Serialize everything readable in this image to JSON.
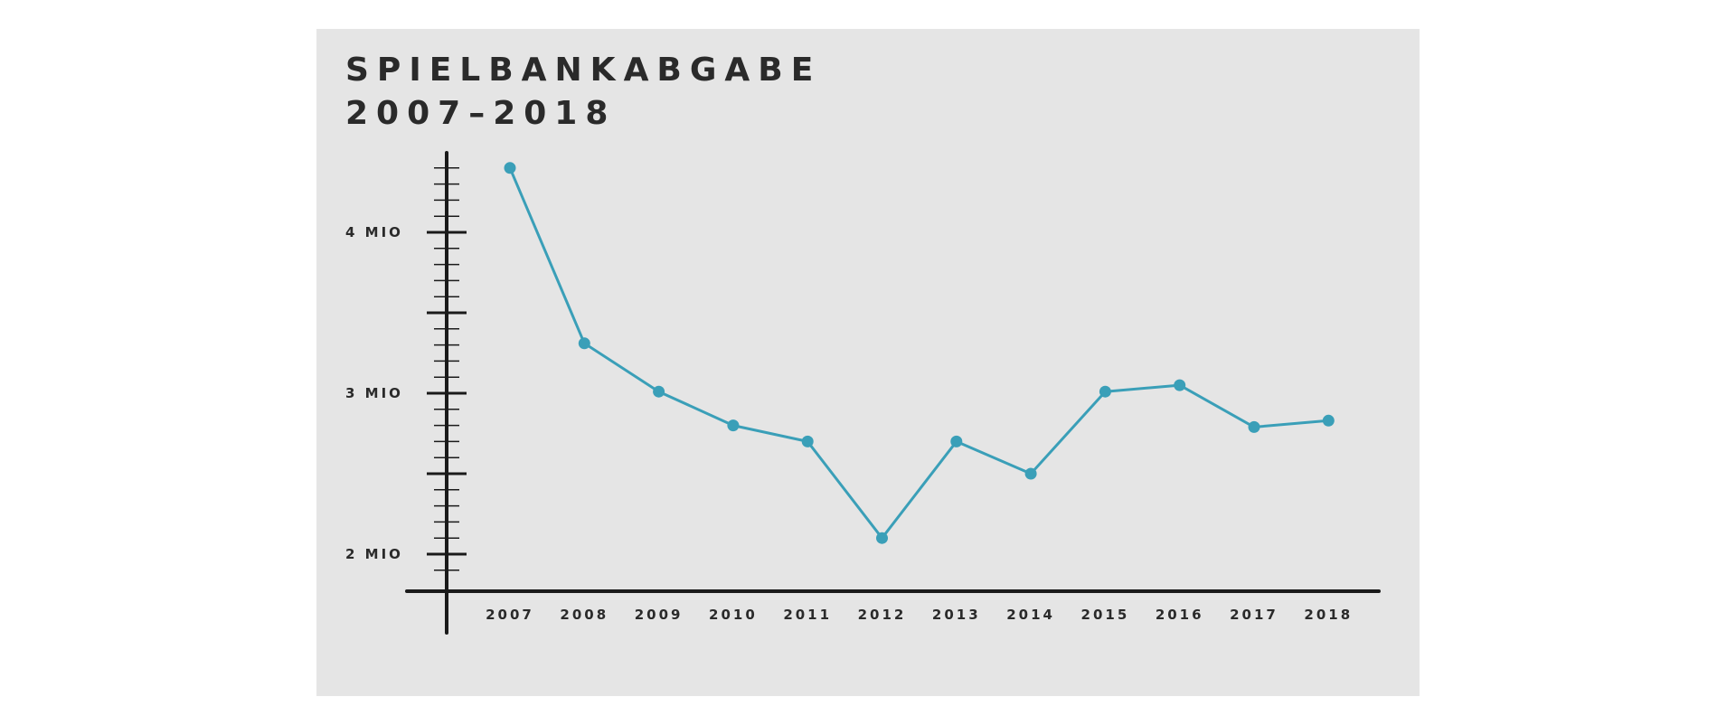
{
  "colors": {
    "panel_background": "#e5e5e5",
    "axis": "#1a1a1a",
    "series": "#3a9fb8",
    "text": "#2a2a2a"
  },
  "chart_data": {
    "type": "line",
    "title_lines": [
      "SPIELBANKABGABE",
      "2007–2018"
    ],
    "xlabel": "",
    "ylabel": "",
    "categories": [
      "2007",
      "2008",
      "2009",
      "2010",
      "2011",
      "2012",
      "2013",
      "2014",
      "2015",
      "2016",
      "2017",
      "2018"
    ],
    "values": [
      4400000,
      3310000,
      3010000,
      2800000,
      2700000,
      2100000,
      2700000,
      2500000,
      3010000,
      3050000,
      2790000,
      2830000
    ],
    "y_ticks": [
      {
        "value": 2000000,
        "label": "2 MIO"
      },
      {
        "value": 3000000,
        "label": "3 MIO"
      },
      {
        "value": 4000000,
        "label": "4 MIO"
      }
    ],
    "y_half_ticks": [
      2500000,
      3500000
    ],
    "y_minor_step": 100000,
    "ylim": [
      1770000,
      4500000
    ],
    "grid": false,
    "legend": "none"
  }
}
